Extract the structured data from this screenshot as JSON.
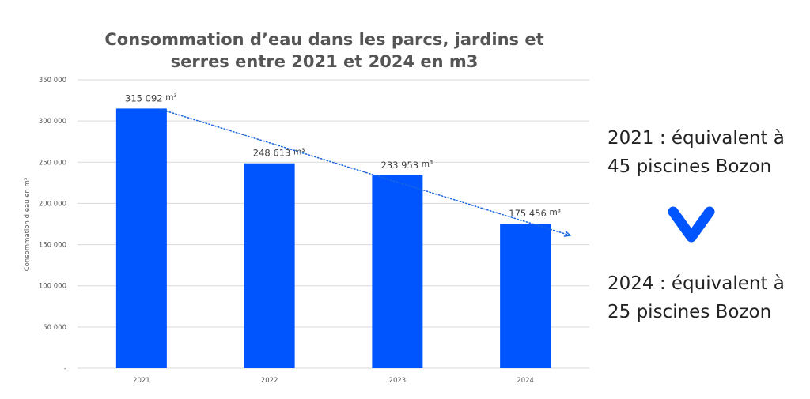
{
  "chart_data": {
    "type": "bar",
    "title_lines": [
      "Consommation d’eau dans les parcs, jardins et",
      "serres entre 2021 et 2024 en m3"
    ],
    "ylabel": "Consommation d’eau en m³",
    "categories": [
      "2021",
      "2022",
      "2023",
      "2024"
    ],
    "values": [
      315092,
      248613,
      233953,
      175456
    ],
    "data_labels": [
      "315 092",
      "248 613",
      "233 953",
      "175 456"
    ],
    "data_label_unit": "m³",
    "ylim": [
      0,
      350000
    ],
    "yticks": [
      0,
      50000,
      100000,
      150000,
      200000,
      250000,
      300000,
      350000
    ],
    "ytick_labels": [
      "-",
      "50 000",
      "100 000",
      "150 000",
      "200 000",
      "250 000",
      "300 000",
      "350 000"
    ],
    "grid": true,
    "trendline": "dotted linear, arrow",
    "bar_color": "#0055ff",
    "trend_color": "#1a66dd"
  },
  "side": {
    "top_lines": [
      "2021 : équivalent à",
      "45 piscines Bozon"
    ],
    "bottom_lines": [
      "2024 : équivalent à",
      "25 piscines Bozon"
    ],
    "chevron_icon": "chevron-down-icon",
    "chevron_color": "#0055ff"
  }
}
